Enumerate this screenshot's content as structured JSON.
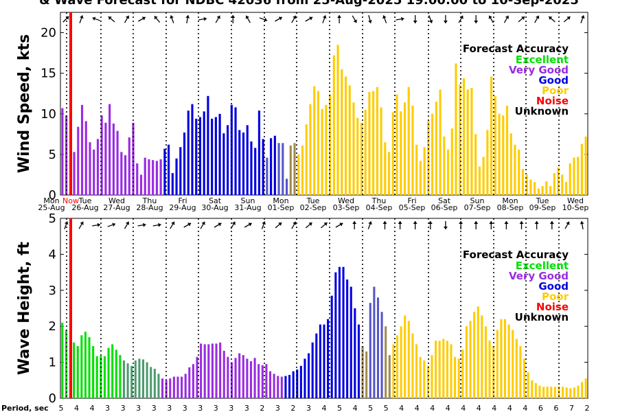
{
  "title": "& Wave Forecast for NDBC 42036 from 25-Aug-2025 19:00:00 to 10-Sep-2025",
  "legend": {
    "title": "Forecast Accuracy",
    "items": [
      {
        "label": "Excellent",
        "color": "#00e000"
      },
      {
        "label": "Very Good",
        "color": "#9a2be2"
      },
      {
        "label": "Good",
        "color": "#0000e0"
      },
      {
        "label": "Poor",
        "color": "#ffcc00"
      },
      {
        "label": "Noise",
        "color": "#ff0000"
      },
      {
        "label": "Unknown",
        "color": "#000000"
      }
    ]
  },
  "day_names": [
    "Mon",
    "Tue",
    "Wed",
    "Thu",
    "Fri",
    "Sat",
    "Sun",
    "Mon",
    "Tue",
    "Wed",
    "Thu",
    "Fri",
    "Sat",
    "Sun",
    "Mon",
    "Tue",
    "Wed"
  ],
  "day_dates": [
    "25-Aug",
    "26-Aug",
    "27-Aug",
    "28-Aug",
    "29-Aug",
    "30-Aug",
    "31-Aug",
    "01-Sep",
    "02-Sep",
    "03-Sep",
    "04-Sep",
    "05-Sep",
    "06-Sep",
    "07-Sep",
    "08-Sep",
    "09-Sep",
    "10-Sep"
  ],
  "now_label": "Now",
  "period_label": "Period, sec",
  "period_values": [
    "5",
    "4",
    "4",
    "3",
    "3",
    "3",
    "3",
    "3",
    "3",
    "3",
    "3",
    "3",
    "3",
    "2",
    "3",
    "2",
    "3",
    "4",
    "5",
    "4",
    "5",
    "5",
    "4",
    "4",
    "4",
    "4",
    "4",
    "4",
    "4",
    "4",
    "4",
    "6",
    "6",
    "7",
    "2"
  ],
  "colors": {
    "excellent": "#00e000",
    "very_good": "#9a2be2",
    "good": "#0000e0",
    "poor": "#ffcc00",
    "transition_green": "#4d9a6e",
    "transition_brown": "#a08a50",
    "transition_blue": "#5555cc",
    "now_line": "#ff0000"
  },
  "chart_data": [
    {
      "type": "bar",
      "ylabel": "Wind Speed, kts",
      "ylim": [
        0,
        22.5
      ],
      "yticks": [
        0,
        5,
        10,
        15,
        20
      ],
      "values": [
        10.7,
        9.8,
        0,
        5.3,
        8.4,
        11.1,
        9.1,
        6.5,
        5.6,
        6.9,
        9.8,
        8.9,
        11.2,
        8.8,
        7.9,
        5.3,
        4.9,
        7.1,
        8.9,
        3.9,
        2.5,
        4.6,
        4.4,
        4.3,
        4.2,
        4.4,
        5.7,
        6.2,
        2.7,
        4.5,
        5.9,
        7.7,
        10.4,
        11.2,
        9.4,
        9.6,
        10.3,
        12.2,
        9.4,
        9.6,
        10.0,
        7.6,
        8.6,
        11.1,
        10.8,
        8.0,
        7.7,
        8.6,
        6.6,
        5.8,
        10.4,
        6.9,
        4.6,
        7.0,
        7.3,
        6.4,
        6.4,
        2.0,
        6.1,
        6.4,
        5.0,
        6.1,
        8.7,
        11.2,
        13.4,
        12.8,
        10.6,
        11.1,
        12.4,
        17.2,
        18.5,
        15.5,
        14.6,
        13.5,
        11.4,
        9.5,
        8.9,
        10.5,
        12.7,
        12.8,
        13.3,
        10.8,
        6.5,
        5.3,
        10.2,
        12.4,
        10.3,
        11.4,
        13.3,
        11.0,
        6.2,
        4.2,
        5.9,
        9.2,
        10.0,
        11.5,
        13.0,
        7.2,
        5.6,
        8.2,
        16.2,
        13.6,
        14.4,
        13.0,
        13.2,
        7.5,
        3.5,
        4.7,
        8.0,
        14.6,
        12.2,
        10.0,
        9.8,
        11.0,
        7.6,
        6.2,
        5.6,
        3.2,
        2.5,
        1.9,
        1.6,
        0.8,
        1.1,
        1.7,
        1.1,
        2.7,
        3.4,
        2.5,
        1.6,
        3.9,
        4.6,
        4.7,
        6.3,
        7.2
      ],
      "colors": [
        "vg",
        "vg",
        "none",
        "vg",
        "vg",
        "vg",
        "vg",
        "vg",
        "vg",
        "vg",
        "vg",
        "vg",
        "vg",
        "vg",
        "vg",
        "vg",
        "vg",
        "vg",
        "vg",
        "vg",
        "vg",
        "vg",
        "vg",
        "vg",
        "vg",
        "vg",
        "g",
        "g",
        "g",
        "g",
        "g",
        "g",
        "g",
        "g",
        "g",
        "g",
        "g",
        "g",
        "g",
        "g",
        "g",
        "g",
        "g",
        "g",
        "g",
        "g",
        "g",
        "g",
        "g",
        "g",
        "g",
        "g",
        "tb",
        "g",
        "g",
        "tb",
        "tb",
        "tb",
        "tbr",
        "tbr",
        "p",
        "p",
        "p",
        "p",
        "p",
        "p",
        "p",
        "p",
        "p",
        "p",
        "p",
        "p",
        "p",
        "p",
        "p",
        "p",
        "p",
        "p",
        "p",
        "p",
        "p",
        "p",
        "p",
        "p",
        "p",
        "p",
        "p",
        "p",
        "p",
        "p",
        "p",
        "p",
        "p",
        "p",
        "p",
        "p",
        "p",
        "p",
        "p",
        "p",
        "p",
        "p",
        "p",
        "p",
        "p",
        "p",
        "p",
        "p",
        "p",
        "p",
        "p",
        "p",
        "p",
        "p",
        "p",
        "p",
        "p",
        "p",
        "p",
        "p",
        "p",
        "p",
        "p",
        "p",
        "p",
        "p",
        "p",
        "p",
        "p",
        "p",
        "p",
        "p",
        "p",
        "p",
        "p",
        "p",
        "p",
        "p",
        "p",
        "p",
        "p",
        "p",
        "p"
      ],
      "arrows": [
        315,
        290,
        200,
        220,
        300,
        330,
        230,
        250,
        280,
        350,
        300,
        270,
        240,
        20,
        330,
        300,
        330,
        290,
        270,
        60,
        75,
        250,
        350,
        90,
        70,
        90,
        300,
        90,
        240,
        300,
        320,
        300,
        220,
        320,
        290
      ]
    },
    {
      "type": "bar",
      "ylabel": "Wave Height, ft",
      "ylim": [
        0,
        5
      ],
      "yticks": [
        0,
        1,
        2,
        3,
        4,
        5
      ],
      "values": [
        2.1,
        1.9,
        0,
        1.55,
        1.45,
        1.75,
        1.85,
        1.7,
        1.45,
        1.17,
        1.18,
        1.17,
        1.4,
        1.5,
        1.35,
        1.2,
        1.05,
        0.97,
        0.9,
        1.05,
        1.1,
        1.08,
        1.0,
        0.87,
        0.82,
        0.68,
        0.55,
        0.5,
        0.55,
        0.6,
        0.6,
        0.6,
        0.68,
        0.86,
        0.95,
        1.15,
        1.52,
        1.5,
        1.5,
        1.52,
        1.52,
        1.55,
        1.32,
        1.15,
        1.0,
        1.12,
        1.25,
        1.2,
        1.1,
        1.03,
        1.12,
        0.95,
        0.92,
        0.95,
        0.75,
        0.68,
        0.62,
        0.6,
        0.62,
        0.65,
        0.75,
        0.8,
        0.9,
        1.1,
        1.25,
        1.55,
        1.8,
        2.05,
        2.05,
        2.2,
        2.85,
        3.5,
        3.65,
        3.65,
        3.3,
        3.1,
        2.5,
        2.05,
        1.45,
        1.3,
        2.65,
        3.1,
        2.8,
        2.4,
        2.0,
        1.2,
        1.5,
        1.75,
        2.0,
        2.3,
        2.15,
        1.8,
        1.5,
        1.15,
        1.05,
        0.9,
        1.2,
        1.6,
        1.6,
        1.65,
        1.6,
        1.5,
        1.15,
        1.1,
        1.35,
        2.0,
        2.15,
        2.4,
        2.55,
        2.3,
        2.0,
        1.6,
        1.45,
        1.9,
        2.2,
        2.2,
        2.05,
        1.9,
        1.65,
        1.45,
        1.1,
        0.72,
        0.5,
        0.42,
        0.35,
        0.32,
        0.32,
        0.32,
        0.32,
        0.33,
        0.32,
        0.3,
        0.28,
        0.3,
        0.35,
        0.45,
        0.55
      ],
      "colors": [
        "e",
        "e",
        "none",
        "e",
        "e",
        "e",
        "e",
        "e",
        "e",
        "e",
        "e",
        "e",
        "e",
        "e",
        "e",
        "e",
        "tg",
        "tg",
        "tg",
        "tg",
        "tg",
        "tg",
        "tg",
        "tg",
        "tg",
        "tg",
        "vg",
        "vg",
        "vg",
        "vg",
        "vg",
        "vg",
        "vg",
        "vg",
        "vg",
        "vg",
        "vg",
        "vg",
        "vg",
        "vg",
        "vg",
        "vg",
        "vg",
        "vg",
        "vg",
        "vg",
        "vg",
        "vg",
        "vg",
        "vg",
        "vg",
        "vg",
        "vg",
        "vg",
        "vg",
        "vg",
        "vg",
        "vg",
        "g",
        "g",
        "g",
        "g",
        "g",
        "g",
        "g",
        "g",
        "g",
        "g",
        "g",
        "g",
        "g",
        "g",
        "g",
        "g",
        "g",
        "g",
        "g",
        "g",
        "tbr",
        "tbr",
        "tb",
        "tb",
        "tb",
        "tb",
        "tbr",
        "tbr",
        "p",
        "p",
        "p",
        "p",
        "p",
        "p",
        "p",
        "p",
        "p",
        "p",
        "p",
        "p",
        "p",
        "p",
        "p",
        "p",
        "p",
        "p",
        "p",
        "p",
        "p",
        "p",
        "p",
        "p",
        "p",
        "p",
        "p",
        "p",
        "p",
        "p",
        "p",
        "p",
        "p",
        "p",
        "p",
        "p",
        "p",
        "p",
        "p",
        "p",
        "p",
        "p",
        "p",
        "p",
        "p",
        "p",
        "p",
        "p",
        "p",
        "p",
        "p",
        "p",
        "p",
        "p",
        "p",
        "p"
      ],
      "arrows": [
        290,
        300,
        350,
        340,
        300,
        350,
        350,
        300,
        330,
        300,
        330,
        300,
        330,
        290,
        320,
        300,
        320,
        320,
        330,
        270,
        290,
        270,
        270,
        270,
        270,
        90,
        270,
        270,
        270,
        270,
        270,
        270,
        270,
        300,
        260
      ]
    }
  ]
}
